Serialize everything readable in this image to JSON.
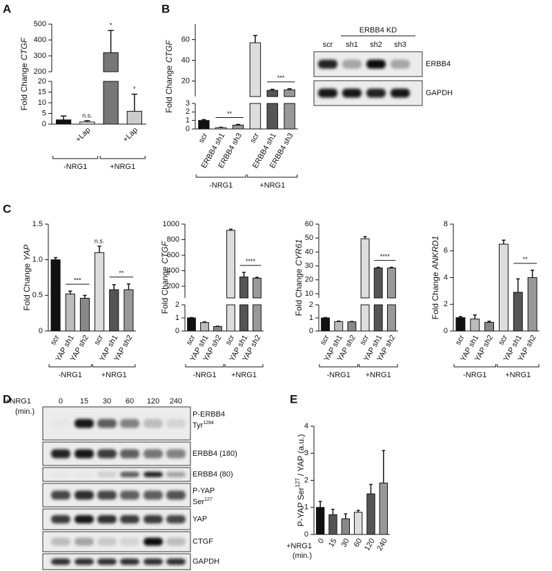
{
  "panels": [
    "A",
    "B",
    "C",
    "D",
    "E"
  ],
  "chart_data": [
    {
      "type": "bar",
      "y_label": "Fold Change",
      "y_label_italic": "CTGF",
      "categories": [
        null,
        "+Lap",
        null,
        "+Lap"
      ],
      "values": [
        2,
        1,
        320,
        6
      ],
      "errors": [
        1.8,
        0.6,
        140,
        8
      ],
      "colors": [
        "#111111",
        "#f2f2f2",
        "#777777",
        "#cccccc"
      ],
      "annotations": [
        null,
        "n.s.",
        "*",
        "*"
      ],
      "axis_segments": [
        {
          "ylim": [
            0,
            20
          ],
          "yticks": [
            0,
            5,
            10,
            15,
            20
          ]
        },
        {
          "ylim": [
            200,
            500
          ],
          "yticks": [
            200,
            300,
            400,
            500
          ]
        }
      ],
      "groups": [
        {
          "label": "-NRG1",
          "bars": [
            0,
            1
          ]
        },
        {
          "label": "+NRG1",
          "bars": [
            2,
            3
          ]
        }
      ]
    },
    {
      "type": "bar",
      "y_label": "Fold Change",
      "y_label_italic": "CTGF",
      "categories": [
        "scr",
        "ERBB4 sh1",
        "ERBB4 sh3",
        "scr",
        "ERBB4 sh1",
        "ERBB4 sh3"
      ],
      "values": [
        1.0,
        0.15,
        0.45,
        57,
        11,
        11.5
      ],
      "errors": [
        0.1,
        0.05,
        0.08,
        7,
        1,
        1
      ],
      "colors": [
        "#111111",
        "#f2f2f2",
        "#999999",
        "#dddddd",
        "#555555",
        "#999999"
      ],
      "axis_segments": [
        {
          "ylim": [
            0,
            3
          ],
          "yticks": [
            0,
            1,
            2,
            3
          ]
        },
        {
          "ylim": [
            5,
            75
          ],
          "yticks": [
            20,
            40,
            60
          ]
        }
      ],
      "brackets": [
        {
          "bars": [
            1,
            2
          ],
          "label": "**"
        },
        {
          "bars": [
            4,
            5
          ],
          "label": "***"
        }
      ],
      "groups": [
        {
          "label": "-NRG1",
          "bars": [
            0,
            2
          ]
        },
        {
          "label": "+NRG1",
          "bars": [
            3,
            5
          ]
        }
      ]
    },
    {
      "type": "bar",
      "y_label": "Fold Change",
      "y_label_italic": "YAP",
      "categories": [
        "scr",
        "YAP sh1",
        "YAP sh2",
        "scr",
        "YAP sh1",
        "YAP sh2"
      ],
      "values": [
        1.0,
        0.52,
        0.46,
        1.1,
        0.58,
        0.58
      ],
      "errors": [
        0.03,
        0.04,
        0.04,
        0.09,
        0.07,
        0.08
      ],
      "colors": [
        "#111111",
        "#bbbbbb",
        "#888888",
        "#dddddd",
        "#555555",
        "#999999"
      ],
      "annotations": [
        null,
        null,
        null,
        "n.s.",
        null,
        null
      ],
      "ylim": [
        0,
        1.5
      ],
      "yticks": [
        0,
        0.5,
        {
          "value": 1.0,
          "label": "1.0"
        },
        1.5
      ],
      "brackets": [
        {
          "bars": [
            1,
            2
          ],
          "label": "***"
        },
        {
          "bars": [
            4,
            5
          ],
          "label": "**"
        }
      ],
      "groups": [
        {
          "label": "-NRG1",
          "bars": [
            0,
            2
          ]
        },
        {
          "label": "+NRG1",
          "bars": [
            3,
            5
          ]
        }
      ]
    },
    {
      "type": "bar",
      "y_label": "Fold Change",
      "y_label_italic": "CTGF",
      "categories": [
        "scr",
        "YAP sh1",
        "YAP sh2",
        "scr",
        "YAP sh1",
        "YAP sh2"
      ],
      "values": [
        1.0,
        0.65,
        0.35,
        920,
        320,
        305
      ],
      "errors": [
        0.03,
        0.05,
        0.02,
        15,
        60,
        10
      ],
      "colors": [
        "#111111",
        "#bbbbbb",
        "#888888",
        "#dddddd",
        "#555555",
        "#999999"
      ],
      "axis_segments": [
        {
          "ylim": [
            0,
            2
          ],
          "yticks": [
            0,
            1,
            2
          ]
        },
        {
          "ylim": [
            50,
            1000
          ],
          "yticks": [
            200,
            400,
            600,
            800,
            1000
          ]
        }
      ],
      "brackets": [
        {
          "bars": [
            4,
            5
          ],
          "label": "****"
        }
      ],
      "groups": [
        {
          "label": "-NRG1",
          "bars": [
            0,
            2
          ]
        },
        {
          "label": "+NRG1",
          "bars": [
            3,
            5
          ]
        }
      ]
    },
    {
      "type": "bar",
      "y_label": "Fold Change",
      "y_label_italic": "CYR61",
      "categories": [
        "scr",
        "YAP sh1",
        "YAP sh2",
        "scr",
        "YAP sh1",
        "YAP sh2"
      ],
      "values": [
        1.0,
        0.72,
        0.7,
        49.5,
        28.5,
        28.5
      ],
      "errors": [
        0.03,
        0.04,
        0.03,
        1.5,
        0.5,
        0.5
      ],
      "colors": [
        "#111111",
        "#bbbbbb",
        "#888888",
        "#dddddd",
        "#555555",
        "#999999"
      ],
      "axis_segments": [
        {
          "ylim": [
            0,
            2
          ],
          "yticks": [
            0,
            1,
            2
          ]
        },
        {
          "ylim": [
            7,
            60
          ],
          "yticks": [
            10,
            20,
            30,
            40,
            50,
            60
          ]
        }
      ],
      "brackets": [
        {
          "bars": [
            4,
            5
          ],
          "label": "****"
        }
      ],
      "groups": [
        {
          "label": "-NRG1",
          "bars": [
            0,
            2
          ]
        },
        {
          "label": "+NRG1",
          "bars": [
            3,
            5
          ]
        }
      ]
    },
    {
      "type": "bar",
      "y_label": "Fold Change",
      "y_label_italic": "ANKRD1",
      "categories": [
        "scr",
        "YAP sh1",
        "YAP sh2",
        "scr",
        "YAP sh1",
        "YAP sh2"
      ],
      "values": [
        1.0,
        0.9,
        0.65,
        6.5,
        2.9,
        4.0
      ],
      "errors": [
        0.08,
        0.3,
        0.08,
        0.3,
        1.0,
        0.55
      ],
      "colors": [
        "#111111",
        "#bbbbbb",
        "#888888",
        "#dddddd",
        "#555555",
        "#999999"
      ],
      "ylim": [
        0,
        8
      ],
      "yticks": [
        0,
        2,
        4,
        6,
        8
      ],
      "brackets": [
        {
          "bars": [
            4,
            5
          ],
          "label": "**"
        }
      ],
      "groups": [
        {
          "label": "-NRG1",
          "bars": [
            0,
            2
          ]
        },
        {
          "label": "+NRG1",
          "bars": [
            3,
            5
          ]
        }
      ]
    },
    {
      "type": "bar",
      "y_label": "P-YAP Ser",
      "y_label_sup": "127",
      "y_label_end": "/ YAP (a.u.)",
      "x_label": "+NRG1",
      "x_label2": "(min.)",
      "categories": [
        "0",
        "15",
        "30",
        "60",
        "120",
        "240"
      ],
      "values": [
        1.0,
        0.73,
        0.58,
        0.82,
        1.5,
        1.9
      ],
      "errors": [
        0.22,
        0.2,
        0.18,
        0.07,
        0.35,
        1.2
      ],
      "colors": [
        "#111111",
        "#555555",
        "#888888",
        "#dddddd",
        "#555555",
        "#999999"
      ],
      "ylim": [
        0,
        4
      ],
      "yticks": [
        0,
        1,
        2,
        3,
        4
      ]
    }
  ],
  "blots": [
    {
      "header": "ERBB4 KD",
      "lanes": [
        "scr",
        "sh1",
        "sh2",
        "sh3"
      ],
      "rows": [
        {
          "label": "ERBB4"
        },
        {
          "label": "GAPDH"
        }
      ]
    },
    {
      "header": "+NRG1",
      "header2": "(min.)",
      "lanes": [
        "0",
        "15",
        "30",
        "60",
        "120",
        "240"
      ],
      "rows": [
        {
          "label": "P-ERBB4",
          "label2": "Tyr",
          "sup": "1284"
        },
        {
          "label": "ERBB4 (180)"
        },
        {
          "label": "ERBB4 (80)"
        },
        {
          "label": "P-YAP",
          "label2": "Ser",
          "sup": "127"
        },
        {
          "label": "YAP"
        },
        {
          "label": "CTGF"
        },
        {
          "label": "GAPDH"
        }
      ]
    }
  ]
}
